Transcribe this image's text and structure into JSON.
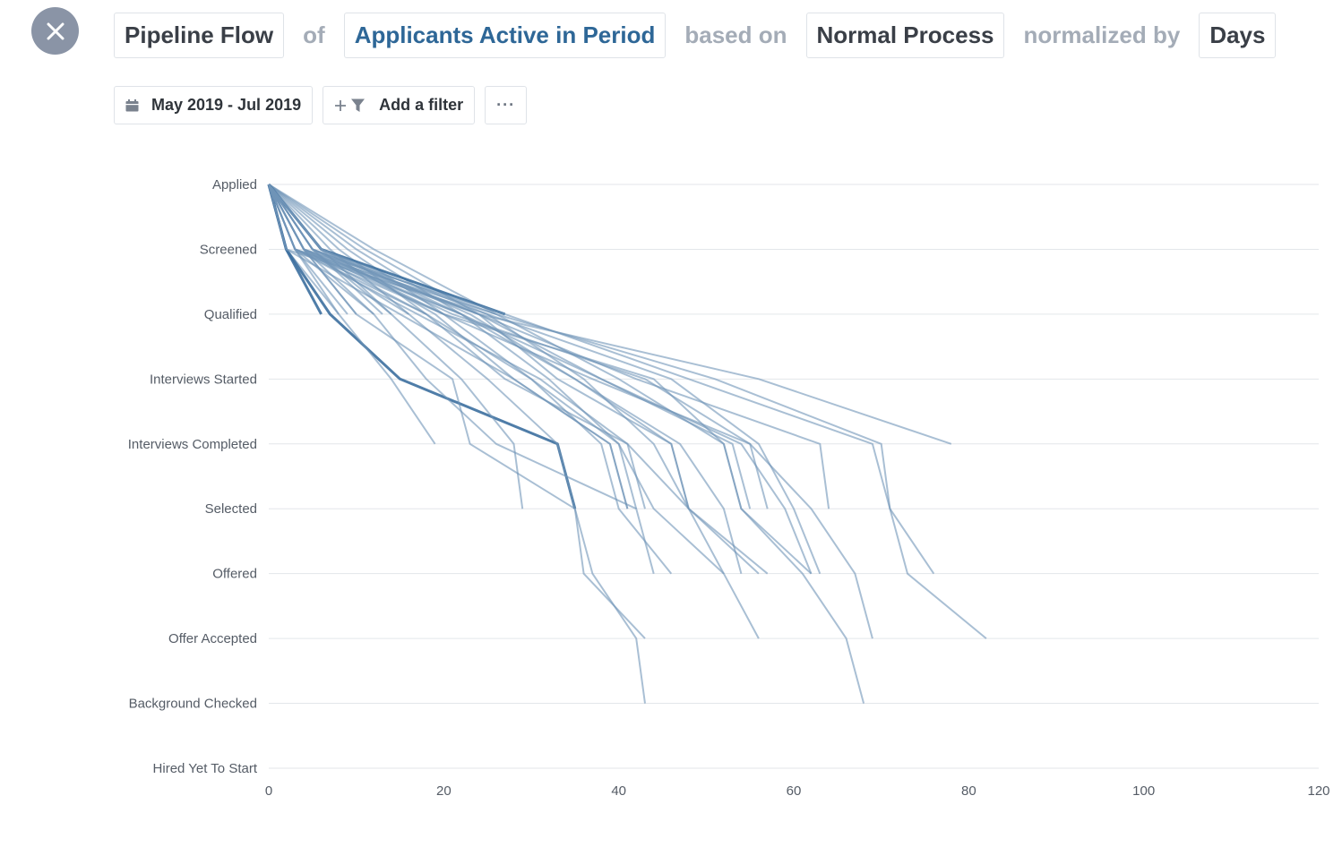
{
  "header": {
    "metric": "Pipeline Flow",
    "of_label": "of",
    "population": "Applicants Active in Period",
    "based_on_label": "based on",
    "process": "Normal Process",
    "normalized_label": "normalized by",
    "unit": "Days"
  },
  "toolbar": {
    "date_range": "May 2019 - Jul 2019",
    "add_filter": "Add a filter",
    "more": "···"
  },
  "icons": {
    "close": "close-icon",
    "calendar": "calendar-icon",
    "filter": "filter-icon"
  },
  "colors": {
    "line": "#6f94b8",
    "line_strong": "#3c6f9e",
    "pill_blue": "#2e6797",
    "connector": "#a4acb7",
    "close_bg": "#8a94a6"
  },
  "chart_data": {
    "type": "line",
    "title": "",
    "xlabel": "",
    "ylabel": "",
    "categories": [
      "Applied",
      "Screened",
      "Qualified",
      "Interviews Started",
      "Interviews Completed",
      "Selected",
      "Offered",
      "Offer Accepted",
      "Background Checked",
      "Hired Yet To Start"
    ],
    "xlim": [
      0,
      120
    ],
    "x_ticks": [
      0,
      20,
      40,
      60,
      80,
      100,
      120
    ],
    "grid": true,
    "legend": "none",
    "series": [
      {
        "x": [
          0,
          2,
          6
        ],
        "strong": true
      },
      {
        "x": [
          0,
          2,
          8
        ]
      },
      {
        "x": [
          0,
          3,
          9
        ]
      },
      {
        "x": [
          0,
          4,
          10
        ]
      },
      {
        "x": [
          0,
          4,
          12
        ]
      },
      {
        "x": [
          0,
          5,
          13
        ]
      },
      {
        "x": [
          0,
          6,
          14
        ]
      },
      {
        "x": [
          0,
          7,
          16
        ]
      },
      {
        "x": [
          0,
          8,
          18
        ]
      },
      {
        "x": [
          0,
          9,
          20
        ]
      },
      {
        "x": [
          0,
          10,
          22
        ]
      },
      {
        "x": [
          0,
          11,
          24
        ]
      },
      {
        "x": [
          0,
          12,
          26
        ]
      },
      {
        "x": [
          0,
          6,
          27
        ],
        "strong": true
      },
      {
        "x": [
          0,
          2,
          7,
          15,
          33,
          35
        ],
        "strong": true
      },
      {
        "x": [
          0,
          3,
          8,
          14,
          19
        ]
      },
      {
        "x": [
          0,
          4,
          10,
          21,
          23,
          35,
          36,
          43
        ]
      },
      {
        "x": [
          0,
          3,
          12,
          18,
          26,
          42,
          44
        ]
      },
      {
        "x": [
          0,
          5,
          14,
          22,
          28,
          29
        ]
      },
      {
        "x": [
          0,
          4,
          16,
          25,
          33,
          35,
          37,
          42,
          43
        ]
      },
      {
        "x": [
          0,
          3,
          18,
          27,
          41,
          48,
          57
        ]
      },
      {
        "x": [
          0,
          6,
          19,
          28,
          39,
          41
        ]
      },
      {
        "x": [
          0,
          5,
          20,
          30,
          38,
          40,
          46
        ]
      },
      {
        "x": [
          0,
          4,
          22,
          32,
          40,
          44,
          52,
          56
        ]
      },
      {
        "x": [
          0,
          3,
          24,
          33,
          46,
          48,
          56
        ]
      },
      {
        "x": [
          0,
          2,
          25,
          36,
          44,
          48,
          52
        ]
      },
      {
        "x": [
          0,
          4,
          24,
          38,
          53,
          55
        ]
      },
      {
        "x": [
          0,
          5,
          26,
          40,
          52,
          54,
          61,
          66,
          68
        ]
      },
      {
        "x": [
          0,
          6,
          22,
          38,
          54,
          59,
          62
        ]
      },
      {
        "x": [
          0,
          3,
          20,
          37,
          55,
          62,
          67,
          69
        ]
      },
      {
        "x": [
          0,
          5,
          24,
          42,
          63,
          64
        ]
      },
      {
        "x": [
          0,
          4,
          27,
          48,
          69,
          71,
          76
        ]
      },
      {
        "x": [
          0,
          3,
          26,
          51,
          70,
          71,
          73,
          82
        ]
      },
      {
        "x": [
          0,
          5,
          24,
          56,
          78
        ]
      },
      {
        "x": [
          0,
          4,
          20,
          44,
          52,
          54,
          62
        ]
      },
      {
        "x": [
          0,
          6,
          25,
          46,
          56,
          60,
          63
        ]
      },
      {
        "x": [
          0,
          3,
          22,
          35,
          46,
          48
        ]
      },
      {
        "x": [
          0,
          4,
          18,
          30,
          40,
          42
        ]
      },
      {
        "x": [
          0,
          2,
          15,
          28,
          39,
          41
        ]
      },
      {
        "x": [
          0,
          6,
          23,
          35,
          47,
          52,
          54
        ]
      },
      {
        "x": [
          0,
          5,
          21,
          43,
          55,
          57
        ]
      },
      {
        "x": [
          0,
          3,
          17,
          31,
          41,
          43
        ]
      }
    ]
  }
}
